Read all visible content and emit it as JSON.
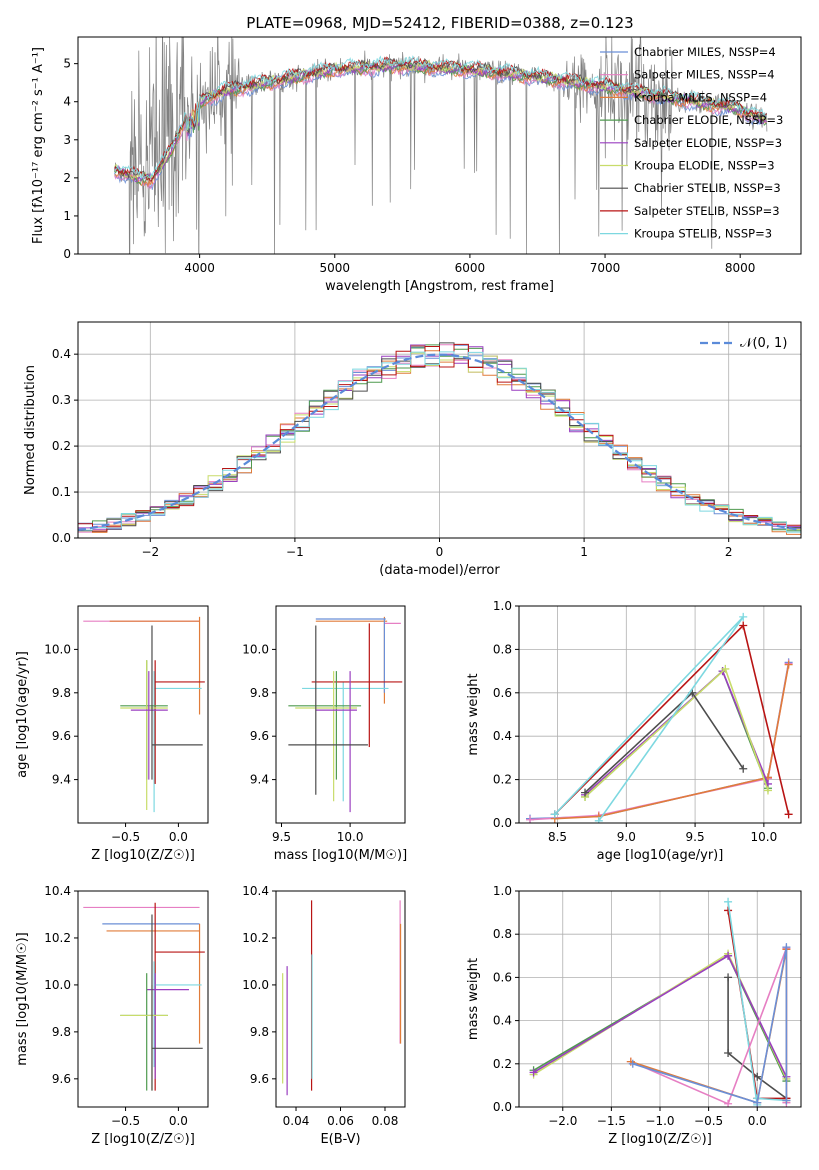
{
  "page": {
    "title": "PLATE=0968, MJD=52412, FIBERID=0388, z=0.123"
  },
  "colors": {
    "chabrier_miles": "#6b8fd6",
    "salpeter_miles": "#e67fc3",
    "kroupa_miles": "#e07c3a",
    "chabrier_elodie": "#4f9a4f",
    "salpeter_elodie": "#9a3fc0",
    "kroupa_elodie": "#c8dc6a",
    "chabrier_stelib": "#4d4d4d",
    "salpeter_stelib": "#b81414",
    "kroupa_stelib": "#7dd8e0",
    "gaussian": "#5b8bd9",
    "grid": "#b0b0b0"
  },
  "chart_data": [
    {
      "id": "spectrum",
      "type": "line",
      "title": "PLATE=0968, MJD=52412, FIBERID=0388, z=0.123",
      "xlabel": "wavelength [Angstrom, rest frame]",
      "ylabel": "Flux [fλ10⁻¹⁷ erg cm⁻² s⁻¹ A⁻¹]",
      "xlim": [
        3100,
        8450
      ],
      "ylim": [
        0,
        5.7
      ],
      "xticks": [
        4000,
        5000,
        6000,
        7000,
        8000
      ],
      "yticks": [
        0,
        1,
        2,
        3,
        4,
        5
      ],
      "legend_position": "top-right",
      "legend": [
        {
          "label": "Chabrier MILES, NSSP=4",
          "color": "#6b8fd6"
        },
        {
          "label": "Salpeter MILES, NSSP=4",
          "color": "#e67fc3"
        },
        {
          "label": "Kroupa MILES, NSSP=4",
          "color": "#e07c3a"
        },
        {
          "label": "Chabrier ELODIE, NSSP=3",
          "color": "#4f9a4f"
        },
        {
          "label": "Salpeter ELODIE, NSSP=3",
          "color": "#9a3fc0"
        },
        {
          "label": "Kroupa ELODIE, NSSP=3",
          "color": "#c8dc6a"
        },
        {
          "label": "Chabrier STELIB, NSSP=3",
          "color": "#4d4d4d"
        },
        {
          "label": "Salpeter STELIB, NSSP=3",
          "color": "#b81414"
        },
        {
          "label": "Kroupa STELIB, NSSP=3",
          "color": "#7dd8e0"
        }
      ],
      "continuum": [
        [
          3370,
          2.2
        ],
        [
          3500,
          2.05
        ],
        [
          3650,
          1.95
        ],
        [
          3800,
          2.8
        ],
        [
          3900,
          3.6
        ],
        [
          4000,
          4.0
        ],
        [
          4200,
          4.3
        ],
        [
          4500,
          4.5
        ],
        [
          5000,
          4.85
        ],
        [
          5500,
          4.95
        ],
        [
          6000,
          4.85
        ],
        [
          6500,
          4.65
        ],
        [
          7000,
          4.4
        ],
        [
          7500,
          4.1
        ],
        [
          8000,
          3.8
        ],
        [
          8200,
          3.5
        ]
      ]
    },
    {
      "id": "residuals",
      "type": "bar",
      "xlabel": "(data-model)/error",
      "ylabel": "Normed distribution",
      "xlim": [
        -2.5,
        2.5
      ],
      "ylim": [
        0,
        0.47
      ],
      "xticks": [
        -2,
        -1,
        0,
        1,
        2
      ],
      "yticks": [
        0.0,
        0.1,
        0.2,
        0.3,
        0.4
      ],
      "grid": true,
      "legend": [
        {
          "label": "𝒩(0, 1)",
          "color": "#5b8bd9"
        }
      ],
      "legend_position": "top-right",
      "bins": {
        "start": -2.5,
        "width": 0.1
      }
    },
    {
      "id": "age_vs_Z",
      "type": "scatter",
      "xlabel": "Z [log10(Z/Z☉)]",
      "ylabel": "age  [log10(age/yr)]",
      "xlim": [
        -0.95,
        0.28
      ],
      "ylim": [
        9.2,
        10.2
      ],
      "xticks": [
        -0.5,
        0.0
      ],
      "yticks": [
        9.4,
        9.6,
        9.8,
        10.0
      ],
      "errorbars": [
        {
          "x": -0.25,
          "y": 10.13,
          "x_lo": -0.9,
          "x_hi": 0.2,
          "y_lo": 10.13,
          "y_hi": 10.13,
          "color": "#e67fc3"
        },
        {
          "x": 0.2,
          "y": 10.13,
          "x_lo": -0.65,
          "x_hi": 0.2,
          "y_lo": 9.7,
          "y_hi": 10.15,
          "color": "#e07c3a"
        },
        {
          "x": -0.23,
          "y": 9.82,
          "x_lo": -0.23,
          "x_hi": 0.22,
          "y_lo": 9.25,
          "y_hi": 9.9,
          "color": "#7dd8e0"
        },
        {
          "x": -0.22,
          "y": 9.85,
          "x_lo": -0.22,
          "x_hi": 0.25,
          "y_lo": 9.38,
          "y_hi": 9.95,
          "color": "#b81414"
        },
        {
          "x": -0.3,
          "y": 9.74,
          "x_lo": -0.55,
          "x_hi": -0.1,
          "y_lo": 9.4,
          "y_hi": 9.95,
          "color": "#4f9a4f"
        },
        {
          "x": -0.3,
          "y": 9.73,
          "x_lo": -0.55,
          "x_hi": -0.1,
          "y_lo": 9.26,
          "y_hi": 9.95,
          "color": "#c8dc6a"
        },
        {
          "x": -0.28,
          "y": 9.72,
          "x_lo": -0.45,
          "x_hi": -0.1,
          "y_lo": 9.4,
          "y_hi": 9.9,
          "color": "#9a3fc0"
        },
        {
          "x": -0.25,
          "y": 9.56,
          "x_lo": -0.25,
          "x_hi": 0.23,
          "y_lo": 9.4,
          "y_hi": 10.11,
          "color": "#4d4d4d"
        }
      ]
    },
    {
      "id": "age_vs_mass",
      "type": "scatter",
      "xlabel": "mass [log10(M/M☉)]",
      "ylabel": "",
      "xlim": [
        9.46,
        10.4
      ],
      "ylim": [
        9.2,
        10.2
      ],
      "xticks": [
        9.5,
        10.0
      ],
      "yticks": [
        9.4,
        9.6,
        9.8,
        10.0
      ],
      "errorbars": [
        {
          "x": 10.33,
          "y": 10.12,
          "x_lo": 10.25,
          "x_hi": 10.37,
          "y_lo": 10.12,
          "y_hi": 10.12,
          "color": "#e67fc3"
        },
        {
          "x": 10.25,
          "y": 10.13,
          "x_lo": 9.75,
          "x_hi": 10.27,
          "y_lo": 9.75,
          "y_hi": 10.15,
          "color": "#e07c3a"
        },
        {
          "x": 10.25,
          "y": 10.14,
          "x_lo": 9.75,
          "x_hi": 10.26,
          "y_lo": 9.8,
          "y_hi": 10.14,
          "color": "#6b8fd6"
        },
        {
          "x": 9.95,
          "y": 9.82,
          "x_lo": 9.65,
          "x_hi": 10.28,
          "y_lo": 9.3,
          "y_hi": 9.85,
          "color": "#7dd8e0"
        },
        {
          "x": 10.14,
          "y": 9.85,
          "x_lo": 9.72,
          "x_hi": 10.38,
          "y_lo": 9.55,
          "y_hi": 10.12,
          "color": "#b81414"
        },
        {
          "x": 9.9,
          "y": 9.74,
          "x_lo": 9.55,
          "x_hi": 10.08,
          "y_lo": 9.4,
          "y_hi": 9.9,
          "color": "#4f9a4f"
        },
        {
          "x": 9.88,
          "y": 9.73,
          "x_lo": 9.6,
          "x_hi": 10.05,
          "y_lo": 9.3,
          "y_hi": 9.9,
          "color": "#c8dc6a"
        },
        {
          "x": 10.0,
          "y": 9.72,
          "x_lo": 9.75,
          "x_hi": 10.05,
          "y_lo": 9.25,
          "y_hi": 9.9,
          "color": "#9a3fc0"
        },
        {
          "x": 9.75,
          "y": 9.56,
          "x_lo": 9.55,
          "x_hi": 10.13,
          "y_lo": 9.33,
          "y_hi": 10.11,
          "color": "#4d4d4d"
        }
      ]
    },
    {
      "id": "mass_weight_vs_age",
      "type": "line",
      "xlabel": "age  [log10(age/yr)]",
      "ylabel": "mass weight",
      "xlim": [
        8.22,
        10.27
      ],
      "ylim": [
        0.0,
        1.0
      ],
      "xticks": [
        8.5,
        9.0,
        9.5,
        10.0
      ],
      "yticks": [
        0.0,
        0.2,
        0.4,
        0.6,
        0.8,
        1.0
      ],
      "grid": true,
      "series": [
        {
          "color": "#6b8fd6",
          "x": [
            8.3,
            8.8,
            10.03,
            10.18
          ],
          "y": [
            0.02,
            0.03,
            0.21,
            0.74
          ]
        },
        {
          "color": "#e67fc3",
          "x": [
            8.3,
            8.8,
            10.03,
            10.18
          ],
          "y": [
            0.015,
            0.035,
            0.205,
            0.735
          ]
        },
        {
          "color": "#e07c3a",
          "x": [
            8.48,
            8.8,
            10.03,
            10.18
          ],
          "y": [
            0.02,
            0.03,
            0.21,
            0.73
          ]
        },
        {
          "color": "#4f9a4f",
          "x": [
            8.7,
            9.7,
            10.03
          ],
          "y": [
            0.12,
            0.7,
            0.16
          ]
        },
        {
          "color": "#9a3fc0",
          "x": [
            8.7,
            9.7,
            10.03
          ],
          "y": [
            0.13,
            0.7,
            0.18
          ]
        },
        {
          "color": "#c8dc6a",
          "x": [
            8.7,
            9.72,
            10.03
          ],
          "y": [
            0.12,
            0.71,
            0.15
          ]
        },
        {
          "color": "#4d4d4d",
          "x": [
            8.7,
            9.48,
            9.85
          ],
          "y": [
            0.14,
            0.6,
            0.25
          ]
        },
        {
          "color": "#b81414",
          "x": [
            8.48,
            9.85,
            10.18
          ],
          "y": [
            0.04,
            0.91,
            0.04
          ]
        },
        {
          "color": "#7dd8e0",
          "x": [
            8.8,
            9.85,
            8.48
          ],
          "y": [
            0.01,
            0.95,
            0.04
          ]
        }
      ]
    },
    {
      "id": "mass_vs_Z",
      "type": "scatter",
      "xlabel": "Z [log10(Z/Z☉)]",
      "ylabel": "mass [log10(M/M☉)]",
      "xlim": [
        -0.95,
        0.28
      ],
      "ylim": [
        9.48,
        10.4
      ],
      "xticks": [
        -0.5,
        0.0
      ],
      "yticks": [
        9.6,
        9.8,
        10.0,
        10.2,
        10.4
      ],
      "errorbars": [
        {
          "x": 0.2,
          "y": 10.33,
          "x_lo": -0.9,
          "x_hi": 0.2,
          "y_lo": 10.33,
          "y_hi": 10.33,
          "color": "#e67fc3"
        },
        {
          "x": 0.2,
          "y": 10.26,
          "x_lo": -0.72,
          "x_hi": 0.2,
          "y_lo": 10.26,
          "y_hi": 10.26,
          "color": "#6b8fd6"
        },
        {
          "x": 0.2,
          "y": 10.23,
          "x_lo": -0.68,
          "x_hi": 0.2,
          "y_lo": 9.75,
          "y_hi": 10.26,
          "color": "#e07c3a"
        },
        {
          "x": -0.22,
          "y": 10.14,
          "x_lo": -0.22,
          "x_hi": 0.25,
          "y_lo": 9.55,
          "y_hi": 10.35,
          "color": "#b81414"
        },
        {
          "x": -0.23,
          "y": 10.0,
          "x_lo": -0.23,
          "x_hi": 0.22,
          "y_lo": 9.65,
          "y_hi": 10.1,
          "color": "#7dd8e0"
        },
        {
          "x": -0.22,
          "y": 9.98,
          "x_lo": -0.3,
          "x_hi": 0.1,
          "y_lo": 9.6,
          "y_hi": 10.05,
          "color": "#9a3fc0"
        },
        {
          "x": -0.3,
          "y": 9.87,
          "x_lo": -0.55,
          "x_hi": -0.1,
          "y_lo": 9.55,
          "y_hi": 10.05,
          "color": "#4f9a4f"
        },
        {
          "x": -0.25,
          "y": 9.87,
          "x_lo": -0.55,
          "x_hi": -0.1,
          "y_lo": 9.55,
          "y_hi": 10.0,
          "color": "#c8dc6a"
        },
        {
          "x": -0.25,
          "y": 9.73,
          "x_lo": -0.25,
          "x_hi": 0.23,
          "y_lo": 9.55,
          "y_hi": 10.3,
          "color": "#4d4d4d"
        }
      ]
    },
    {
      "id": "mass_vs_ebv",
      "type": "scatter",
      "xlabel": "E(B-V)",
      "ylabel": "",
      "xlim": [
        0.031,
        0.089
      ],
      "ylim": [
        9.48,
        10.4
      ],
      "xticks": [
        0.04,
        0.06,
        0.08
      ],
      "yticks": [
        9.6,
        9.8,
        10.0,
        10.2,
        10.4
      ],
      "errorbars": [
        {
          "x": 0.034,
          "y": 9.8,
          "x_lo": 0.034,
          "x_hi": 0.034,
          "y_lo": 9.58,
          "y_hi": 10.05,
          "color": "#c8dc6a"
        },
        {
          "x": 0.036,
          "y": 9.8,
          "x_lo": 0.036,
          "x_hi": 0.036,
          "y_lo": 9.53,
          "y_hi": 10.08,
          "color": "#9a3fc0"
        },
        {
          "x": 0.047,
          "y": 10.0,
          "x_lo": 0.047,
          "x_hi": 0.047,
          "y_lo": 9.55,
          "y_hi": 10.36,
          "color": "#b81414"
        },
        {
          "x": 0.0472,
          "y": 9.9,
          "x_lo": 0.0472,
          "x_hi": 0.0472,
          "y_lo": 9.6,
          "y_hi": 10.13,
          "color": "#7dd8e0"
        },
        {
          "x": 0.0868,
          "y": 10.0,
          "x_lo": 0.0868,
          "x_hi": 0.0868,
          "y_lo": 9.75,
          "y_hi": 10.36,
          "color": "#e67fc3"
        },
        {
          "x": 0.087,
          "y": 10.0,
          "x_lo": 0.087,
          "x_hi": 0.087,
          "y_lo": 9.75,
          "y_hi": 10.26,
          "color": "#e07c3a"
        }
      ]
    },
    {
      "id": "mass_weight_vs_Z",
      "type": "line",
      "xlabel": "Z [log10(Z/Z☉)]",
      "ylabel": "mass weight",
      "xlim": [
        -2.45,
        0.45
      ],
      "ylim": [
        0.0,
        1.0
      ],
      "xticks": [
        -2.0,
        -1.5,
        -1.0,
        -0.5,
        0.0
      ],
      "yticks": [
        0.0,
        0.2,
        0.4,
        0.6,
        0.8,
        1.0
      ],
      "grid": true,
      "series": [
        {
          "color": "#4f9a4f",
          "x": [
            -2.3,
            -0.3,
            0.3
          ],
          "y": [
            0.17,
            0.7,
            0.12
          ]
        },
        {
          "color": "#c8dc6a",
          "x": [
            -2.3,
            -0.3,
            0.3
          ],
          "y": [
            0.15,
            0.71,
            0.13
          ]
        },
        {
          "color": "#9a3fc0",
          "x": [
            -2.3,
            -0.3,
            0.3
          ],
          "y": [
            0.16,
            0.7,
            0.14
          ]
        },
        {
          "color": "#4d4d4d",
          "x": [
            -0.3,
            -0.3,
            0.0,
            0.3
          ],
          "y": [
            0.6,
            0.25,
            0.14,
            0.04
          ]
        },
        {
          "color": "#b81414",
          "x": [
            -0.3,
            0.0,
            0.3,
            0.3
          ],
          "y": [
            0.91,
            0.04,
            0.04,
            0.04
          ]
        },
        {
          "color": "#7dd8e0",
          "x": [
            -0.3,
            0.0,
            0.0,
            0.3
          ],
          "y": [
            0.95,
            0.01,
            0.04,
            0.03
          ]
        },
        {
          "color": "#e67fc3",
          "x": [
            -1.3,
            -0.3,
            0.3,
            0.3
          ],
          "y": [
            0.21,
            0.015,
            0.735,
            0.02
          ]
        },
        {
          "color": "#e07c3a",
          "x": [
            -1.3,
            0.0,
            0.3,
            0.3
          ],
          "y": [
            0.21,
            0.02,
            0.73,
            0.03
          ]
        },
        {
          "color": "#6b8fd6",
          "x": [
            -1.28,
            0.0,
            0.3,
            0.3
          ],
          "y": [
            0.2,
            0.02,
            0.74,
            0.03
          ]
        }
      ]
    }
  ]
}
